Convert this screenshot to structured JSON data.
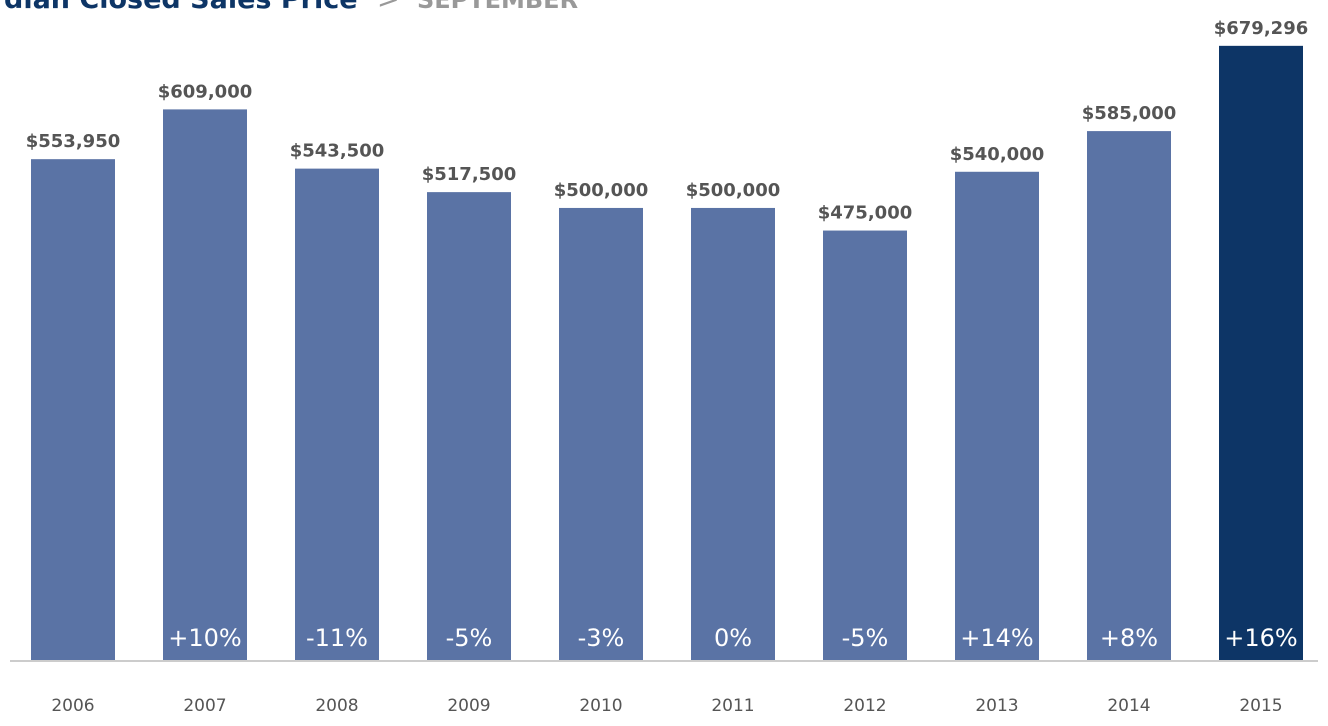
{
  "chart_data": {
    "type": "bar",
    "title": "dian Closed Sales Price",
    "separator": ">",
    "subtitle": "SEPTEMBER",
    "categories": [
      "2006",
      "2007",
      "2008",
      "2009",
      "2010",
      "2011",
      "2012",
      "2013",
      "2014",
      "2015"
    ],
    "values": [
      553950,
      609000,
      543500,
      517500,
      500000,
      500000,
      475000,
      540000,
      585000,
      679296
    ],
    "value_labels": [
      "$553,950",
      "$609,000",
      "$543,500",
      "$517,500",
      "$500,000",
      "$500,000",
      "$475,000",
      "$540,000",
      "$585,000",
      "$679,296"
    ],
    "colors": [
      "#5a73a5",
      "#5a73a5",
      "#5a73a5",
      "#5a73a5",
      "#5a73a5",
      "#5a73a5",
      "#5a73a5",
      "#5a73a5",
      "#5a73a5",
      "#0d3566"
    ],
    "changes": {
      "values": [
        null,
        10,
        -11,
        -5,
        -3,
        0,
        -5,
        14,
        8,
        16
      ],
      "value_labels": [
        null,
        "+10%",
        "-11%",
        "-5%",
        "-3%",
        "0%",
        "-5%",
        "+14%",
        "+8%",
        "+16%"
      ]
    },
    "ylim": [
      0,
      730000
    ]
  }
}
